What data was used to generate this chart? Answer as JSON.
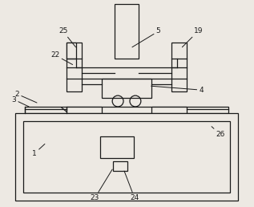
{
  "bg_color": "#ede9e3",
  "line_color": "#1a1a1a",
  "lw": 0.9,
  "thin_lw": 0.6,
  "fig_w": 3.17,
  "fig_h": 2.58,
  "dpi": 100
}
